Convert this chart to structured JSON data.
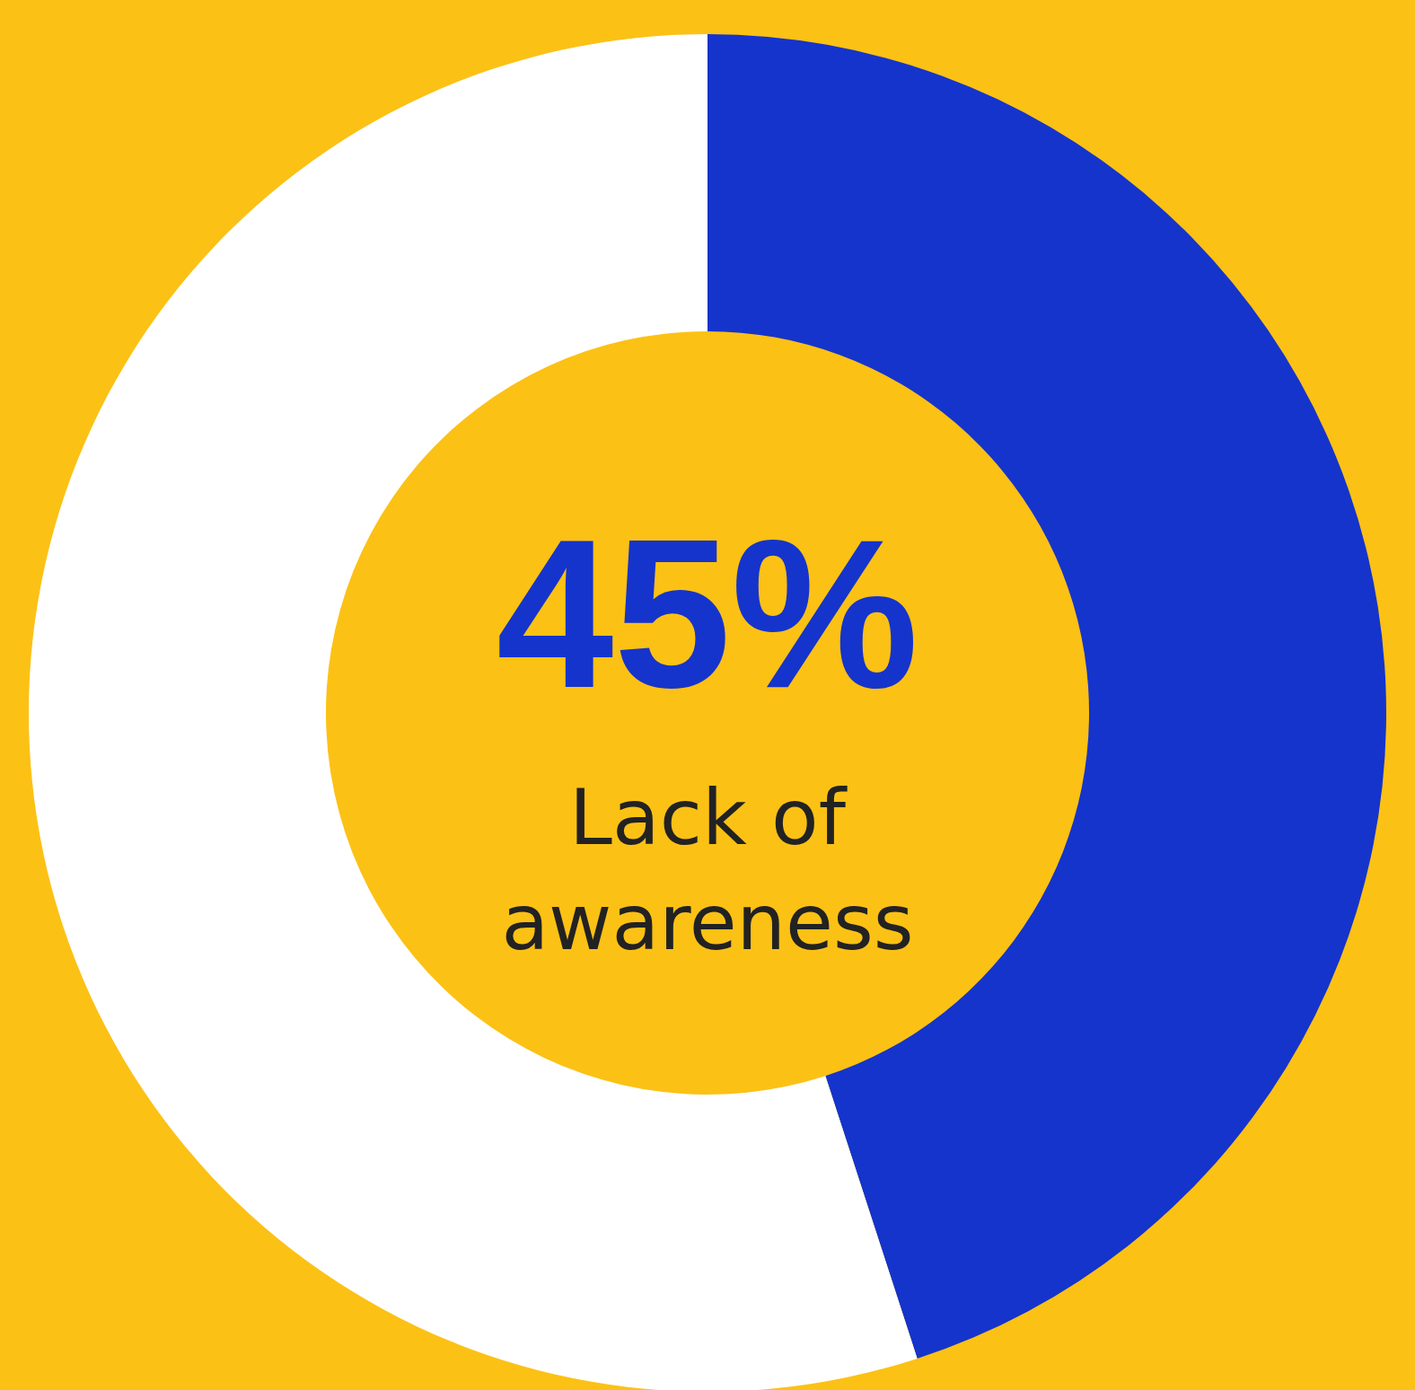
{
  "chart_data": {
    "type": "donut",
    "categories": [
      "Lack of awareness",
      null
    ],
    "values": [
      45,
      55
    ],
    "colors": [
      "#1534cb",
      "#ffffff"
    ],
    "value_labels": [
      "45%",
      null
    ]
  }
}
